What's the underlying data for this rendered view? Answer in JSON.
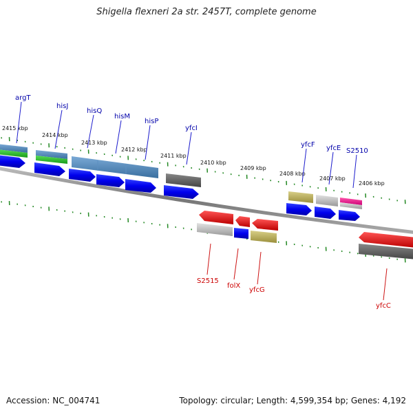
{
  "title": "Shigella flexneri 2a str. 2457T, complete genome",
  "footer": {
    "accession": "Accession: NC_004741",
    "summary": "Topology: circular; Length: 4,599,354 bp; Genes: 4,192"
  },
  "colors": {
    "blue_arrow": "#0000ee",
    "steel_blue": "#4682b4",
    "green": "#22bb22",
    "dark_gray": "#555555",
    "light_gray": "#bbbbbb",
    "khaki": "#b8ad5a",
    "magenta": "#ee1188",
    "red": "#ee0000",
    "forward_label": "#0000aa",
    "reverse_label": "#cc0000",
    "tick_green": "#228822",
    "backbone": "#888888"
  },
  "kbp_labels": [
    "2415 kbp",
    "2414 kbp",
    "2413 kbp",
    "2412 kbp",
    "2411 kbp",
    "2410 kbp",
    "2409 kbp",
    "2408 kbp",
    "2407 kbp",
    "2406 kbp"
  ],
  "forward_genes": [
    "argT",
    "hisJ",
    "hisQ",
    "hisM",
    "hisP",
    "yfcI",
    "yfcF",
    "yfcE",
    "S2510"
  ],
  "reverse_genes": [
    "S2515",
    "folX",
    "yfcG",
    "yfcC"
  ]
}
